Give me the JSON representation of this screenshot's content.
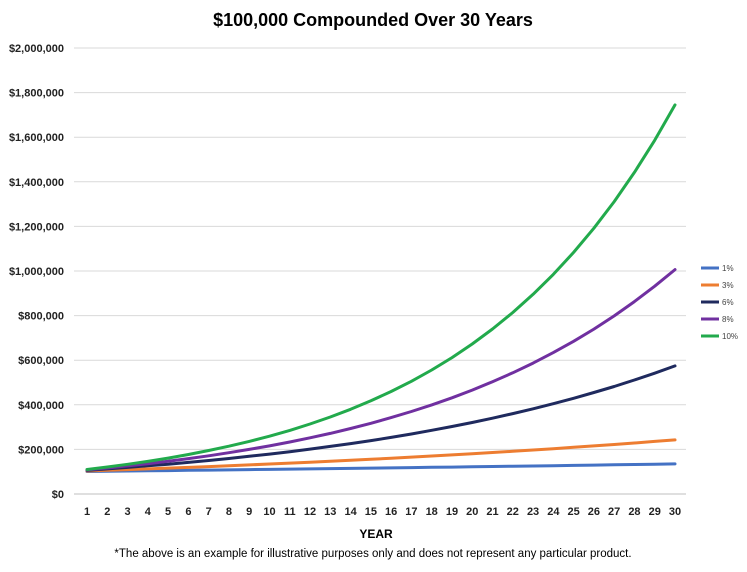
{
  "chart_data": {
    "type": "line",
    "title": "$100,000 Compounded Over 30 Years",
    "xlabel": "YEAR",
    "ylabel": "",
    "footnote": "*The above is an example for illustrative purposes only and does not represent any particular product.",
    "x": [
      1,
      2,
      3,
      4,
      5,
      6,
      7,
      8,
      9,
      10,
      11,
      12,
      13,
      14,
      15,
      16,
      17,
      18,
      19,
      20,
      21,
      22,
      23,
      24,
      25,
      26,
      27,
      28,
      29,
      30
    ],
    "ylim": [
      0,
      2000000
    ],
    "yticks": [
      0,
      200000,
      400000,
      600000,
      800000,
      1000000,
      1200000,
      1400000,
      1600000,
      1800000,
      2000000
    ],
    "ytick_labels": [
      "$0",
      "$200,000",
      "$400,000",
      "$600,000",
      "$800,000",
      "$1,000,000",
      "$1,200,000",
      "$1,400,000",
      "$1,600,000",
      "$1,800,000",
      "$2,000,000"
    ],
    "grid": true,
    "legend": "right",
    "series": [
      {
        "name": "1%",
        "color": "#4472c4",
        "values": [
          101000,
          102010,
          103030,
          104060,
          105101,
          106152,
          107214,
          108286,
          109369,
          110462,
          111567,
          112683,
          113809,
          114947,
          116097,
          117258,
          118430,
          119615,
          120811,
          122019,
          123239,
          124472,
          125716,
          126973,
          128243,
          129526,
          130821,
          132129,
          133450,
          134785
        ]
      },
      {
        "name": "3%",
        "color": "#ed7d31",
        "values": [
          103000,
          106090,
          109273,
          112551,
          115927,
          119405,
          122987,
          126677,
          130477,
          134392,
          138423,
          142576,
          146853,
          151259,
          155797,
          160471,
          165285,
          170243,
          175351,
          180611,
          186029,
          191610,
          197359,
          203279,
          209378,
          215659,
          222129,
          228793,
          235657,
          242726
        ]
      },
      {
        "name": "6%",
        "color": "#1f2a5e",
        "values": [
          106000,
          112360,
          119102,
          126248,
          133823,
          141852,
          150363,
          159385,
          168948,
          179085,
          189830,
          201220,
          213293,
          226090,
          239656,
          254035,
          269277,
          285434,
          302560,
          320714,
          339956,
          360354,
          381975,
          404893,
          429187,
          454938,
          482235,
          511169,
          541839,
          574349
        ]
      },
      {
        "name": "8%",
        "color": "#7030a0",
        "values": [
          108000,
          116640,
          125971,
          136049,
          146933,
          158687,
          171382,
          185093,
          199900,
          215892,
          233164,
          251817,
          271962,
          293719,
          317217,
          342594,
          370002,
          399602,
          431570,
          466096,
          503383,
          543654,
          587146,
          634118,
          684848,
          739635,
          798806,
          862711,
          931727,
          1006266
        ]
      },
      {
        "name": "10%",
        "color": "#22aa4c",
        "values": [
          110000,
          121000,
          133100,
          146410,
          161051,
          177156,
          194872,
          214359,
          235795,
          259374,
          285312,
          313843,
          345227,
          379750,
          417725,
          459497,
          505447,
          555992,
          611591,
          672750,
          740025,
          814027,
          895430,
          984973,
          1083471,
          1191818,
          1310999,
          1442099,
          1586309,
          1744940
        ]
      }
    ]
  }
}
